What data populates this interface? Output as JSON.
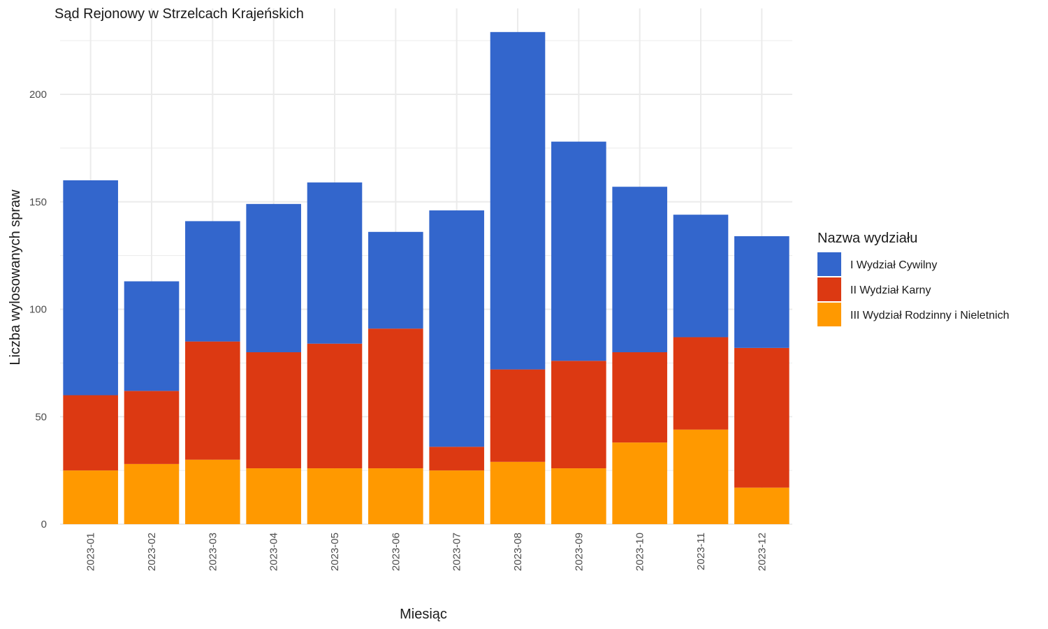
{
  "chart_data": {
    "type": "bar",
    "stacked": true,
    "title": "Sąd Rejonowy w Strzelcach Krajeńskich",
    "xlabel": "Miesiąc",
    "ylabel": "Liczba wylosowanych spraw",
    "ylim": [
      0,
      230
    ],
    "yticks": [
      0,
      50,
      100,
      150,
      200
    ],
    "grid": true,
    "legend": {
      "title": "Nazwa wydziału",
      "position": "right"
    },
    "categories": [
      "2023-01",
      "2023-02",
      "2023-03",
      "2023-04",
      "2023-05",
      "2023-06",
      "2023-07",
      "2023-08",
      "2023-09",
      "2023-10",
      "2023-11",
      "2023-12"
    ],
    "series": [
      {
        "name": "III Wydział Rodzinny i Nieletnich",
        "color": "#FF9900",
        "values": [
          25,
          28,
          30,
          26,
          26,
          26,
          25,
          29,
          26,
          38,
          44,
          17
        ]
      },
      {
        "name": "II Wydział Karny",
        "color": "#DC3912",
        "values": [
          35,
          34,
          55,
          54,
          58,
          65,
          11,
          43,
          50,
          42,
          43,
          65
        ]
      },
      {
        "name": "I Wydział Cywilny",
        "color": "#3366CC",
        "values": [
          100,
          51,
          56,
          69,
          75,
          45,
          110,
          157,
          102,
          77,
          57,
          52
        ]
      }
    ],
    "legend_order": [
      "I Wydział Cywilny",
      "II Wydział Karny",
      "III Wydział Rodzinny i Nieletnich"
    ]
  }
}
